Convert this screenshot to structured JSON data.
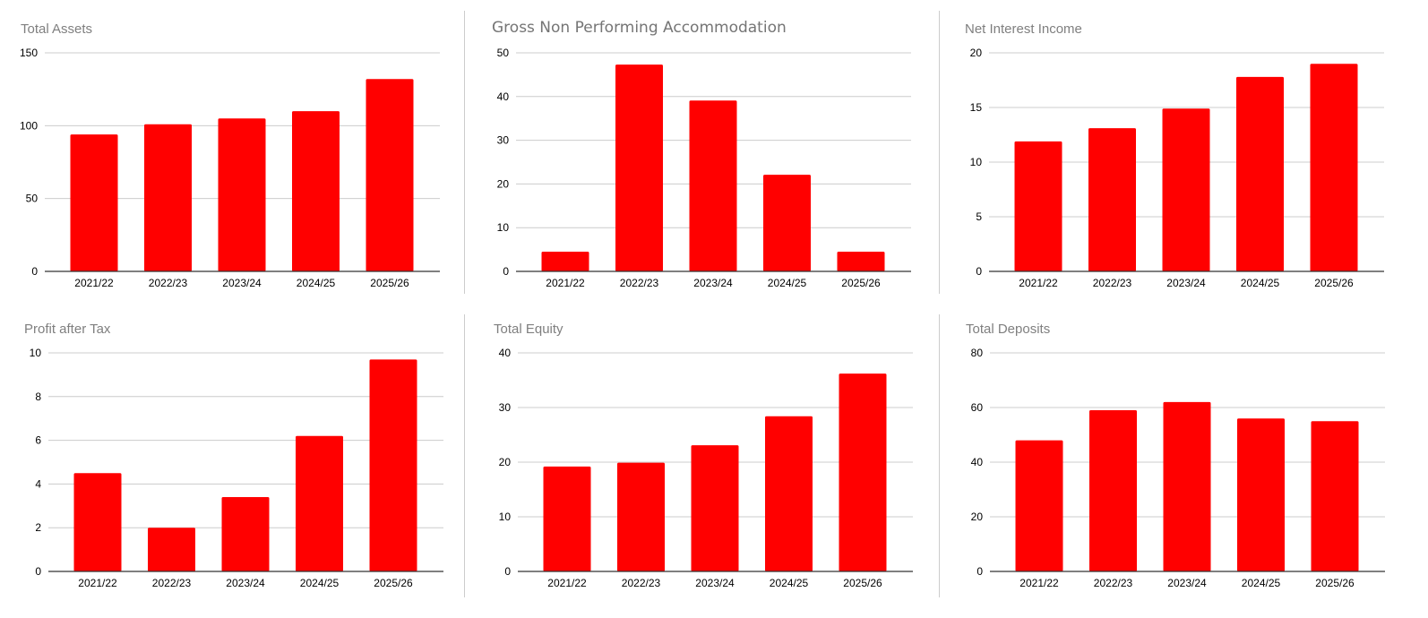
{
  "colors": {
    "bar": "#ff0000",
    "grid": "#cccccc",
    "axis": "#333333",
    "title": "#7f7f7f"
  },
  "chart_data": [
    {
      "type": "bar",
      "title": "Total Assets",
      "categories": [
        "2021/22",
        "2022/23",
        "2023/24",
        "2024/25",
        "2025/26"
      ],
      "values": [
        94,
        101,
        105,
        110,
        132
      ],
      "ylim": [
        0,
        150
      ],
      "yticks": [
        0,
        50,
        100,
        150
      ],
      "grid": true
    },
    {
      "type": "bar",
      "title": "Gross Non Performing Accommodation",
      "categories": [
        "2021/22",
        "2022/23",
        "2023/24",
        "2024/25",
        "2025/26"
      ],
      "values": [
        4.5,
        47.3,
        39.1,
        22.1,
        4.5
      ],
      "ylim": [
        0,
        50
      ],
      "yticks": [
        0,
        10,
        20,
        30,
        40,
        50
      ],
      "grid": true
    },
    {
      "type": "bar",
      "title": "Net Interest Income",
      "categories": [
        "2021/22",
        "2022/23",
        "2023/24",
        "2024/25",
        "2025/26"
      ],
      "values": [
        11.9,
        13.1,
        14.9,
        17.8,
        19.0
      ],
      "ylim": [
        0,
        20
      ],
      "yticks": [
        0,
        5,
        10,
        15,
        20
      ],
      "grid": true
    },
    {
      "type": "bar",
      "title": "Profit after Tax",
      "categories": [
        "2021/22",
        "2022/23",
        "2023/24",
        "2024/25",
        "2025/26"
      ],
      "values": [
        4.5,
        2.0,
        3.4,
        6.2,
        9.7
      ],
      "ylim": [
        0,
        10
      ],
      "yticks": [
        0,
        2,
        4,
        6,
        8,
        10
      ],
      "grid": true
    },
    {
      "type": "bar",
      "title": "Total Equity",
      "categories": [
        "2021/22",
        "2022/23",
        "2023/24",
        "2024/25",
        "2025/26"
      ],
      "values": [
        19.2,
        19.9,
        23.1,
        28.4,
        36.2
      ],
      "ylim": [
        0,
        40
      ],
      "yticks": [
        0,
        10,
        20,
        30,
        40
      ],
      "grid": true
    },
    {
      "type": "bar",
      "title": "Total Deposits",
      "categories": [
        "2021/22",
        "2022/23",
        "2023/24",
        "2024/25",
        "2025/26"
      ],
      "values": [
        48,
        59,
        62,
        56,
        55
      ],
      "ylim": [
        0,
        80
      ],
      "yticks": [
        0,
        20,
        40,
        60,
        80
      ],
      "grid": true
    }
  ]
}
